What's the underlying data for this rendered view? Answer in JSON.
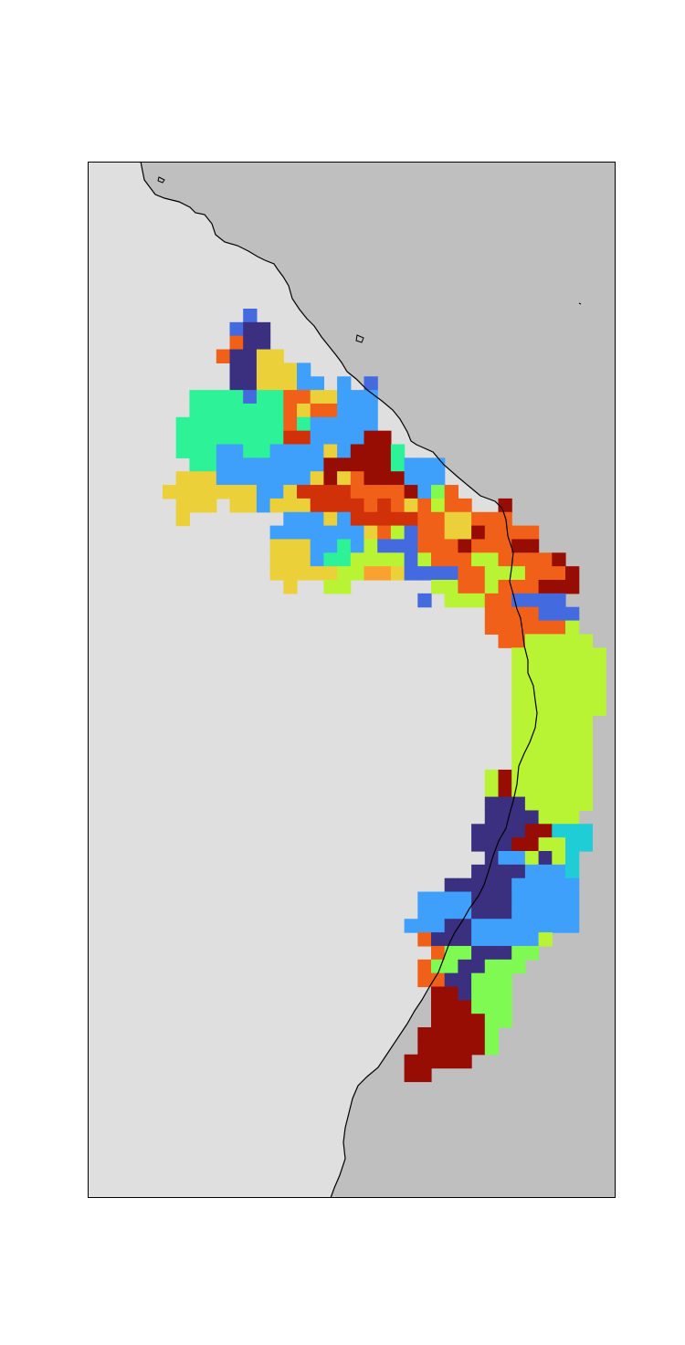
{
  "map": {
    "land_color": "#dfdfdf",
    "ocean_color": "#bfbfbf",
    "frame_color": "#000000",
    "coastline_color": "#000000",
    "palette": {
      "N": "#3b2f80",
      "B": "#436ade",
      "L": "#3ea0fb",
      "G": "#2ef298",
      "Y": "#ecd03a",
      "O": "#f06019",
      "R": "#d13108",
      "D": "#970d03",
      "C": "#1fcdd6",
      "K": "#b9f434",
      "P": "#7ffa52",
      "A": "#faa12f"
    }
  }
}
